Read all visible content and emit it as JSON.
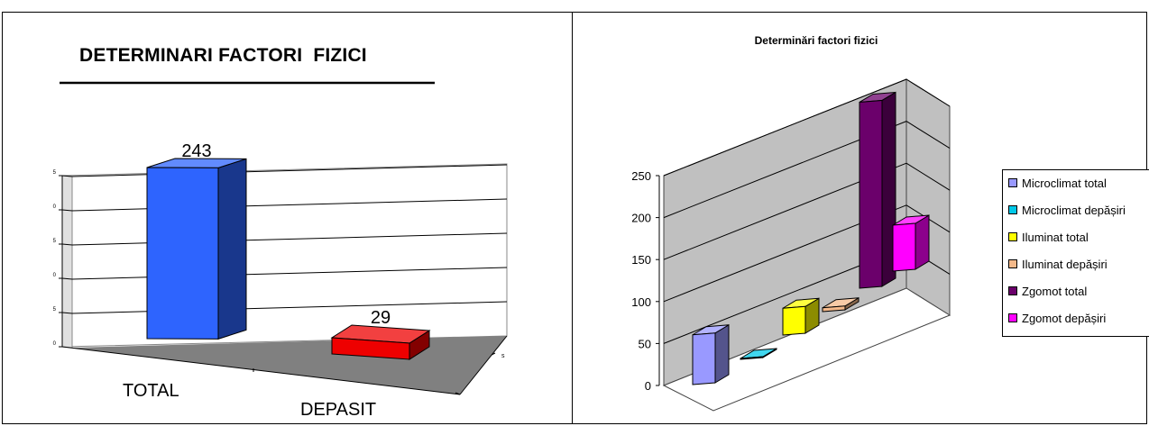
{
  "chart_data": [
    {
      "type": "bar",
      "title": "DETERMINARI FACTORI  FIZICI",
      "categories": [
        "TOTAL",
        "DEPASIT"
      ],
      "values": [
        243,
        29
      ],
      "data_labels": [
        "243",
        "29"
      ],
      "colors": [
        "#2e64fe",
        "#ee0000"
      ],
      "grid": true
    },
    {
      "type": "bar",
      "title": "Determinări factori fizici",
      "yticks": [
        "0",
        "50",
        "100",
        "150",
        "200",
        "250"
      ],
      "ylim": [
        0,
        250
      ],
      "grid": true,
      "legend_position": "right",
      "series": [
        {
          "name": "Microclimat total",
          "value": 65,
          "color": "#9999ff"
        },
        {
          "name": "Microclimat depășiri",
          "value": 1,
          "color": "#00c8e8"
        },
        {
          "name": "Iluminat total",
          "value": 35,
          "color": "#ffff00"
        },
        {
          "name": "Iluminat depășiri",
          "value": 5,
          "color": "#f4b98a"
        },
        {
          "name": "Zgomot total",
          "value": 243,
          "color": "#6b006b"
        },
        {
          "name": "Zgomot depășiri",
          "value": 60,
          "color": "#ff00ff"
        }
      ]
    }
  ]
}
